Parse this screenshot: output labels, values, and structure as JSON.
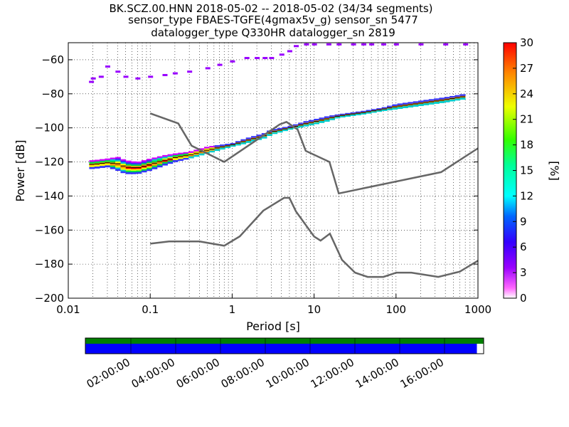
{
  "title_lines": [
    "BK.SCZ.00.HNN   2018-05-02 -- 2018-05-02  (34/34 segments)",
    "sensor_type FBAES-TGFE(4gmax5v_g) sensor_sn 5477",
    "datalogger_type Q330HR datalogger_sn 2819"
  ],
  "colorbar": {
    "label": "[%]",
    "ticks": [
      "0",
      "3",
      "6",
      "9",
      "12",
      "15",
      "18",
      "21",
      "24",
      "27",
      "30"
    ],
    "range": [
      0,
      30
    ]
  },
  "timeline": {
    "ticks": [
      "02:00:00",
      "04:00:00",
      "06:00:00",
      "08:00:00",
      "10:00:00",
      "12:00:00",
      "14:00:00",
      "16:00:00"
    ],
    "data_bar_color": "#0000ff",
    "gap_bar_color": "#007f00",
    "data_end_fraction": 0.983
  },
  "chart_data": {
    "type": "heatmap",
    "xlabel": "Period [s]",
    "ylabel": "Power [dB]",
    "x_scale": "log",
    "xlim": [
      0.01,
      1000
    ],
    "ylim": [
      -200,
      -50
    ],
    "x_ticks": [
      0.01,
      0.1,
      1,
      10,
      100,
      1000
    ],
    "x_tick_labels": [
      "0.01",
      "0.1",
      "1",
      "10",
      "100",
      "1000"
    ],
    "y_ticks": [
      -200,
      -180,
      -160,
      -140,
      -120,
      -100,
      -80,
      -60
    ],
    "y_tick_labels": [
      "−200",
      "−180",
      "−160",
      "−140",
      "−120",
      "−100",
      "−80",
      "−60"
    ],
    "grid": "dotted",
    "color_scale": "percent 0-30",
    "psd_mode_upper": {
      "x": [
        0.02,
        0.03,
        0.04,
        0.05,
        0.07,
        0.1,
        0.15,
        0.2,
        0.3,
        0.5,
        0.7,
        1,
        1.5,
        2.5,
        3,
        5,
        8,
        10,
        15,
        20,
        40,
        70,
        100,
        200,
        400,
        700
      ],
      "y": [
        -119,
        -118,
        -117,
        -119,
        -120,
        -118,
        -116,
        -115,
        -114,
        -111,
        -110,
        -109,
        -106,
        -103,
        -101,
        -99,
        -96,
        -95,
        -93,
        -92,
        -90,
        -88,
        -86,
        -84,
        -82,
        -80
      ]
    },
    "psd_mode_lower": {
      "x": [
        0.02,
        0.03,
        0.04,
        0.05,
        0.07,
        0.1,
        0.15,
        0.2,
        0.3,
        0.5,
        0.7,
        1,
        1.5,
        2.5,
        3,
        5,
        8,
        10,
        15,
        20,
        40,
        70,
        100,
        200,
        400,
        700
      ],
      "y": [
        -124,
        -123,
        -125,
        -127,
        -127,
        -125,
        -122,
        -120,
        -118,
        -115,
        -113,
        -111,
        -109,
        -106,
        -104,
        -101,
        -99,
        -98,
        -96,
        -94,
        -92,
        -90,
        -89,
        -87,
        -85,
        -83
      ]
    },
    "psd_outlier_upper": {
      "x": [
        0.019,
        0.02,
        0.025,
        0.03,
        0.04,
        0.05,
        0.07,
        0.1,
        0.15,
        0.2,
        0.3,
        0.5,
        0.7,
        1,
        1.5,
        2,
        2.5,
        3,
        4,
        5,
        6,
        8,
        10,
        15,
        20,
        30,
        40,
        50,
        70,
        100,
        200,
        400,
        700
      ],
      "y": [
        -73,
        -71,
        -70,
        -64,
        -67,
        -70,
        -71,
        -70,
        -69,
        -68,
        -67,
        -65,
        -63,
        -61,
        -59,
        -59,
        -59,
        -59,
        -57,
        -55,
        -52,
        -51,
        -51,
        -51,
        -51,
        -51,
        -51,
        -51,
        -51,
        -51,
        -51,
        -51,
        -51
      ]
    },
    "noise_model_high": {
      "x": [
        0.1,
        0.22,
        0.32,
        0.8,
        3.8,
        4.6,
        6.3,
        7.9,
        15.4,
        20,
        354.8,
        1000
      ],
      "y": [
        -91.5,
        -97.4,
        -110.5,
        -120,
        -98,
        -96.5,
        -101,
        -113.5,
        -120,
        -138.5,
        -126,
        -112
      ]
    },
    "noise_model_low": {
      "x": [
        0.1,
        0.17,
        0.4,
        0.8,
        1.24,
        2.4,
        4.3,
        5,
        6,
        10,
        12,
        15.6,
        21.9,
        31.6,
        45,
        70,
        101,
        154,
        328,
        600,
        1000
      ],
      "y": [
        -168,
        -166.7,
        -166.7,
        -169.2,
        -163.7,
        -148.6,
        -141.1,
        -141.1,
        -149,
        -163.8,
        -166.2,
        -162.1,
        -177.5,
        -185,
        -187.5,
        -187.5,
        -185,
        -185,
        -187.5,
        -184.4,
        -178
      ]
    }
  }
}
